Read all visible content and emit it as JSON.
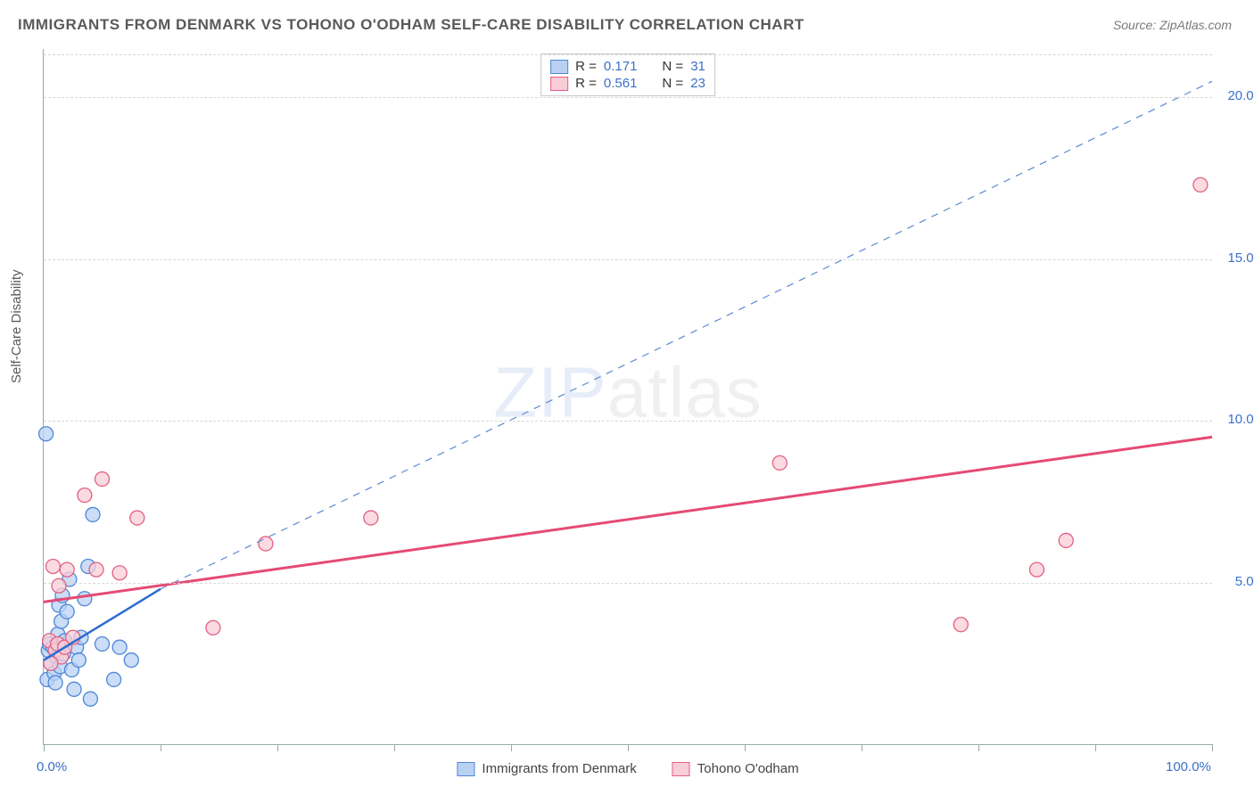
{
  "title": "IMMIGRANTS FROM DENMARK VS TOHONO O'ODHAM SELF-CARE DISABILITY CORRELATION CHART",
  "source": "Source: ZipAtlas.com",
  "y_axis_label": "Self-Care Disability",
  "watermark": {
    "bold": "ZIP",
    "thin": "atlas"
  },
  "chart": {
    "type": "scatter",
    "xlim": [
      0,
      100
    ],
    "ylim": [
      0,
      21.5
    ],
    "x_ticks": [
      0,
      10,
      20,
      30,
      40,
      50,
      60,
      70,
      80,
      90,
      100
    ],
    "x_tick_labels": {
      "0": "0.0%",
      "100": "100.0%"
    },
    "y_gridlines": [
      5,
      10,
      15,
      20
    ],
    "y_tick_labels": {
      "5": "5.0%",
      "10": "10.0%",
      "15": "15.0%",
      "20": "20.0%"
    },
    "background_color": "#ffffff",
    "grid_color": "#d8d8d8",
    "axis_color": "#99aaaa",
    "series": [
      {
        "name": "Immigrants from Denmark",
        "color_fill": "#b9d2f4",
        "color_stroke": "#4f87d6",
        "marker_radius": 8,
        "R": 0.171,
        "N": 31,
        "trend": {
          "x1": 0,
          "y1": 2.6,
          "x2": 10,
          "y2": 4.8,
          "style": "solid",
          "width": 2.5,
          "color": "#2b6ad0"
        },
        "trend_ext": {
          "x1": 10,
          "y1": 4.8,
          "x2": 100,
          "y2": 20.5,
          "style": "dashed",
          "width": 1.2,
          "color": "#5b8ad0"
        },
        "points": [
          [
            0.2,
            9.6
          ],
          [
            0.3,
            2.0
          ],
          [
            0.4,
            2.9
          ],
          [
            0.5,
            3.1
          ],
          [
            0.6,
            2.5
          ],
          [
            0.8,
            3.0
          ],
          [
            0.9,
            2.2
          ],
          [
            1.0,
            1.9
          ],
          [
            1.1,
            2.7
          ],
          [
            1.2,
            3.4
          ],
          [
            1.3,
            4.3
          ],
          [
            1.4,
            2.4
          ],
          [
            1.5,
            3.8
          ],
          [
            1.6,
            4.6
          ],
          [
            1.7,
            2.8
          ],
          [
            1.8,
            3.2
          ],
          [
            2.0,
            4.1
          ],
          [
            2.2,
            5.1
          ],
          [
            2.4,
            2.3
          ],
          [
            2.6,
            1.7
          ],
          [
            2.8,
            3.0
          ],
          [
            3.0,
            2.6
          ],
          [
            3.2,
            3.3
          ],
          [
            3.5,
            4.5
          ],
          [
            3.8,
            5.5
          ],
          [
            4.2,
            7.1
          ],
          [
            5.0,
            3.1
          ],
          [
            6.0,
            2.0
          ],
          [
            6.5,
            3.0
          ],
          [
            7.5,
            2.6
          ],
          [
            4.0,
            1.4
          ]
        ]
      },
      {
        "name": "Tohono O'odham",
        "color_fill": "#f9cdd7",
        "color_stroke": "#e26083",
        "marker_radius": 8,
        "R": 0.561,
        "N": 23,
        "trend": {
          "x1": 0,
          "y1": 4.4,
          "x2": 100,
          "y2": 9.5,
          "style": "solid",
          "width": 3,
          "color": "#e54a74"
        },
        "points": [
          [
            0.5,
            3.2
          ],
          [
            0.8,
            5.5
          ],
          [
            1.0,
            2.9
          ],
          [
            1.2,
            3.1
          ],
          [
            1.5,
            2.7
          ],
          [
            1.8,
            3.0
          ],
          [
            2.0,
            5.4
          ],
          [
            2.5,
            3.3
          ],
          [
            3.5,
            7.7
          ],
          [
            4.5,
            5.4
          ],
          [
            5.0,
            8.2
          ],
          [
            6.5,
            5.3
          ],
          [
            8.0,
            7.0
          ],
          [
            14.5,
            3.6
          ],
          [
            19.0,
            6.2
          ],
          [
            28.0,
            7.0
          ],
          [
            63.0,
            8.7
          ],
          [
            78.5,
            3.7
          ],
          [
            85.0,
            5.4
          ],
          [
            87.5,
            6.3
          ],
          [
            99.0,
            17.3
          ],
          [
            1.3,
            4.9
          ],
          [
            0.6,
            2.5
          ]
        ]
      }
    ]
  },
  "legend_top": [
    {
      "swatch_fill": "#b9d2f4",
      "swatch_stroke": "#4f87d6",
      "R_label": "R  =",
      "R": "0.171",
      "N_label": "N  =",
      "N": "31"
    },
    {
      "swatch_fill": "#f9cdd7",
      "swatch_stroke": "#e26083",
      "R_label": "R  =",
      "R": "0.561",
      "N_label": "N  =",
      "N": "23"
    }
  ],
  "legend_bottom": [
    {
      "swatch_fill": "#b9d2f4",
      "swatch_stroke": "#4f87d6",
      "label": "Immigrants from Denmark"
    },
    {
      "swatch_fill": "#f9cdd7",
      "swatch_stroke": "#e26083",
      "label": "Tohono O'odham"
    }
  ]
}
